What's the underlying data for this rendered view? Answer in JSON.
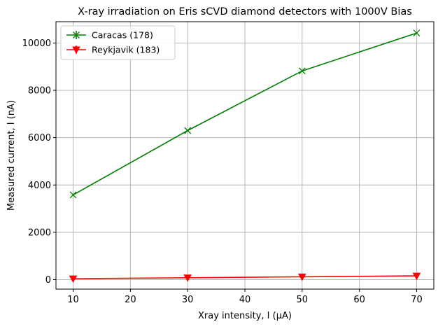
{
  "chart_data": {
    "type": "line",
    "title": "X-ray irradiation on Eris sCVD diamond detectors with 1000V Bias",
    "xlabel": "Xray intensity, I (μA)",
    "ylabel": "Measured current, I (nA)",
    "xlim": [
      7,
      73
    ],
    "ylim": [
      -400,
      10900
    ],
    "xticks": [
      10,
      20,
      30,
      40,
      50,
      60,
      70
    ],
    "yticks": [
      0,
      2000,
      4000,
      6000,
      8000,
      10000
    ],
    "xtick_labels": [
      "10",
      "20",
      "30",
      "40",
      "50",
      "60",
      "70"
    ],
    "ytick_labels": [
      "0",
      "2000",
      "4000",
      "6000",
      "8000",
      "10000"
    ],
    "grid": true,
    "legend_position": "upper-left",
    "series": [
      {
        "name": "Caracas (178)",
        "color": "#008000",
        "marker": "x",
        "x": [
          10,
          30,
          50,
          70
        ],
        "y": [
          3580,
          6300,
          8820,
          10420
        ]
      },
      {
        "name": "Reykjavik (183)",
        "color": "#ff0000",
        "marker": "triangle-down",
        "x": [
          10,
          30,
          50,
          70
        ],
        "y": [
          40,
          80,
          120,
          160
        ]
      }
    ]
  }
}
